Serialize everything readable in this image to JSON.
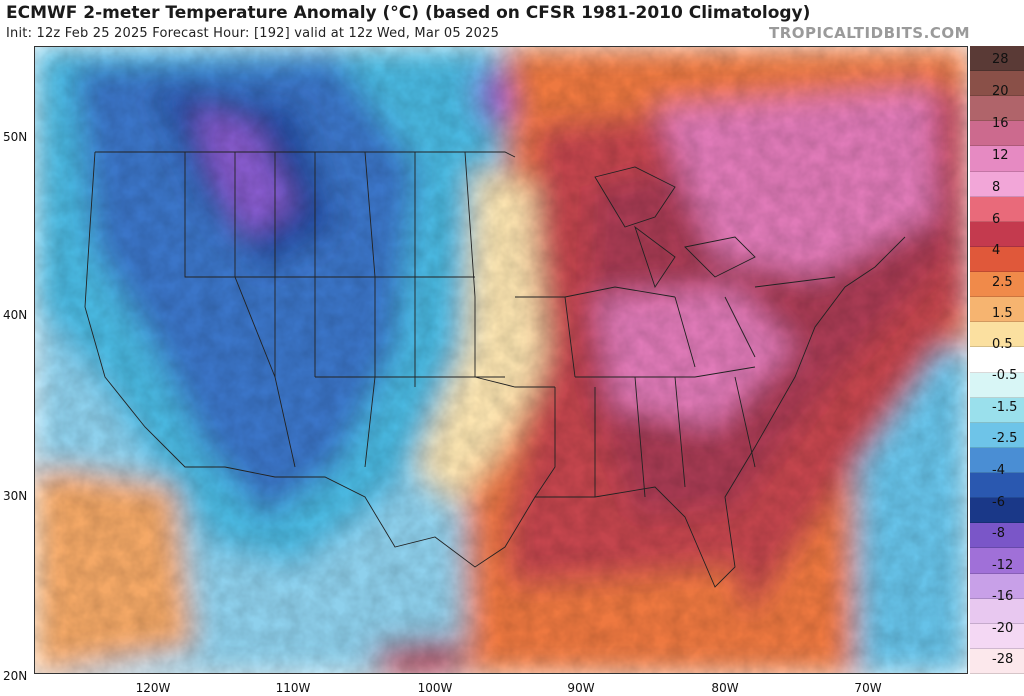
{
  "header": {
    "title": "ECMWF 2-meter Temperature Anomaly (°C) (based on CFSR 1981-2010 Climatology)",
    "subtitle": "Init: 12z Feb 25 2025   Forecast Hour: [192]   valid at 12z Wed, Mar 05 2025",
    "credit": "TROPICALTIDBITS.COM"
  },
  "axes": {
    "lat_labels": [
      "50N",
      "40N",
      "30N",
      "20N"
    ],
    "lon_labels": [
      "120W",
      "110W",
      "100W",
      "90W",
      "80W",
      "70W"
    ]
  },
  "legend": {
    "labels": [
      "28",
      "20",
      "16",
      "12",
      "8",
      "6",
      "4",
      "2.5",
      "1.5",
      "0.5",
      "-0.5",
      "-1.5",
      "-2.5",
      "-4",
      "-6",
      "-8",
      "-12",
      "-16",
      "-20",
      "-28"
    ],
    "colors": [
      "#5a3a36",
      "#8a5048",
      "#b0646a",
      "#cc6a8e",
      "#e68ac2",
      "#f2a6d8",
      "#e96a7a",
      "#c43a4e",
      "#e0583a",
      "#f08a4a",
      "#f6b470",
      "#fbe0a0",
      "#ffffff",
      "#d8f6f6",
      "#9ae0ec",
      "#6ec4e8",
      "#4a8ed4",
      "#2a58b0",
      "#1a3888",
      "#7a56c8",
      "#a070d8",
      "#c8a0e8",
      "#e8c8f0",
      "#f4d8f4",
      "#fce8ec"
    ]
  },
  "map": {
    "colors": {
      "deep_red": "#a83a52",
      "red": "#c4444e",
      "pink": "#e07ab8",
      "orange": "#ee7840",
      "light_orange": "#f4a866",
      "cream": "#fbe4b0",
      "light_blue": "#8ed0ec",
      "cyan": "#4ab8e0",
      "blue": "#3a74c8",
      "dark_blue": "#24469c",
      "purple": "#8a5cd0",
      "ocean_blue": "#66c2e8"
    }
  }
}
